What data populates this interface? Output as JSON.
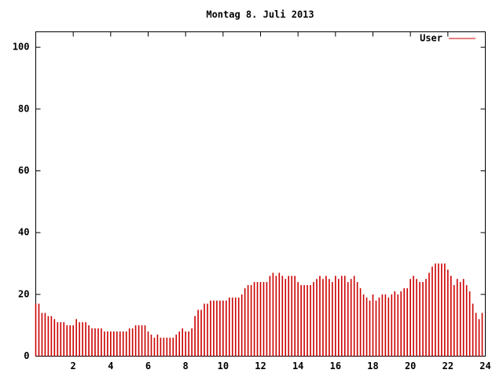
{
  "chart_data": {
    "type": "impulse",
    "title": "Montag 8. Juli 2013",
    "xlim": [
      0,
      24
    ],
    "xticks": [
      2,
      4,
      6,
      8,
      10,
      12,
      14,
      16,
      18,
      20,
      22,
      24
    ],
    "ylim": [
      0,
      105
    ],
    "yticks": [
      0,
      20,
      40,
      60,
      80,
      100
    ],
    "legend": "top-right",
    "series": [
      {
        "name": "User",
        "color": "#cc0000",
        "x": [
          0,
          0.167,
          0.333,
          0.5,
          0.667,
          0.833,
          1,
          1.167,
          1.333,
          1.5,
          1.667,
          1.833,
          2,
          2.167,
          2.333,
          2.5,
          2.667,
          2.833,
          3,
          3.167,
          3.333,
          3.5,
          3.667,
          3.833,
          4,
          4.167,
          4.333,
          4.5,
          4.667,
          4.833,
          5,
          5.167,
          5.333,
          5.5,
          5.667,
          5.833,
          6,
          6.167,
          6.333,
          6.5,
          6.667,
          6.833,
          7,
          7.167,
          7.333,
          7.5,
          7.667,
          7.833,
          8,
          8.167,
          8.333,
          8.5,
          8.667,
          8.833,
          9,
          9.167,
          9.333,
          9.5,
          9.667,
          9.833,
          10,
          10.167,
          10.333,
          10.5,
          10.667,
          10.833,
          11,
          11.167,
          11.333,
          11.5,
          11.667,
          11.833,
          12,
          12.167,
          12.333,
          12.5,
          12.667,
          12.833,
          13,
          13.167,
          13.333,
          13.5,
          13.667,
          13.833,
          14,
          14.167,
          14.333,
          14.5,
          14.667,
          14.833,
          15,
          15.167,
          15.333,
          15.5,
          15.667,
          15.833,
          16,
          16.167,
          16.333,
          16.5,
          16.667,
          16.833,
          17,
          17.167,
          17.333,
          17.5,
          17.667,
          17.833,
          18,
          18.167,
          18.333,
          18.5,
          18.667,
          18.833,
          19,
          19.167,
          19.333,
          19.5,
          19.667,
          19.833,
          20,
          20.167,
          20.333,
          20.5,
          20.667,
          20.833,
          21,
          21.167,
          21.333,
          21.5,
          21.667,
          21.833,
          22,
          22.167,
          22.333,
          22.5,
          22.667,
          22.833,
          23,
          23.167,
          23.333,
          23.5,
          23.667,
          23.833
        ],
        "values": [
          17,
          17,
          14,
          14,
          13,
          13,
          12,
          11,
          11,
          11,
          10,
          10,
          10,
          12,
          11,
          11,
          11,
          10,
          9,
          9,
          9,
          9,
          8,
          8,
          8,
          8,
          8,
          8,
          8,
          8,
          9,
          9,
          10,
          10,
          10,
          10,
          8,
          7,
          6,
          7,
          6,
          6,
          6,
          6,
          6,
          7,
          8,
          9,
          8,
          8,
          9,
          13,
          15,
          15,
          17,
          17,
          18,
          18,
          18,
          18,
          18,
          18,
          19,
          19,
          19,
          19,
          20,
          22,
          23,
          23,
          24,
          24,
          24,
          24,
          24,
          26,
          27,
          26,
          27,
          26,
          25,
          26,
          26,
          26,
          24,
          23,
          23,
          23,
          23,
          24,
          25,
          26,
          25,
          26,
          25,
          24,
          26,
          25,
          26,
          26,
          24,
          25,
          26,
          24,
          22,
          20,
          19,
          18,
          20,
          18,
          19,
          20,
          20,
          19,
          20,
          21,
          20,
          21,
          22,
          22,
          25,
          26,
          25,
          24,
          24,
          25,
          27,
          29,
          30,
          30,
          30,
          30,
          28,
          26,
          23,
          25,
          24,
          25,
          23,
          21,
          17,
          14,
          12,
          14
        ]
      }
    ]
  }
}
